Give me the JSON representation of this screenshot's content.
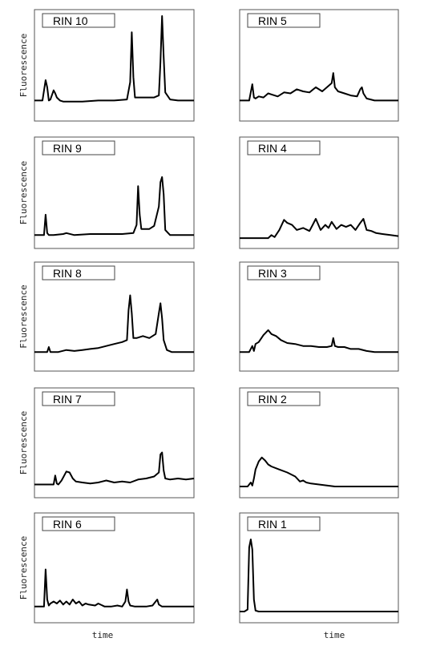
{
  "figure": {
    "ylabel": "Fluorescence",
    "xlabel": "time"
  },
  "chart_data": [
    {
      "type": "line",
      "title": "RIN 10",
      "ylabel": "Fluorescence",
      "xlabel": "",
      "column": "left",
      "row": 1,
      "xlim": [
        0,
        1
      ],
      "ylim": [
        0,
        1
      ],
      "x": [
        0.0,
        0.05,
        0.07,
        0.08,
        0.09,
        0.1,
        0.12,
        0.13,
        0.14,
        0.16,
        0.18,
        0.2,
        0.25,
        0.3,
        0.4,
        0.5,
        0.58,
        0.6,
        0.61,
        0.62,
        0.63,
        0.65,
        0.7,
        0.75,
        0.78,
        0.79,
        0.8,
        0.81,
        0.82,
        0.85,
        0.9,
        1.0
      ],
      "y": [
        0.17,
        0.17,
        0.37,
        0.3,
        0.17,
        0.18,
        0.27,
        0.24,
        0.2,
        0.17,
        0.16,
        0.16,
        0.16,
        0.16,
        0.17,
        0.17,
        0.18,
        0.35,
        0.84,
        0.4,
        0.2,
        0.2,
        0.2,
        0.2,
        0.22,
        0.55,
        1.0,
        0.6,
        0.25,
        0.18,
        0.17,
        0.17
      ]
    },
    {
      "type": "line",
      "title": "RIN 5",
      "ylabel": "",
      "xlabel": "",
      "column": "right",
      "row": 1,
      "xlim": [
        0,
        1
      ],
      "ylim": [
        0,
        1
      ],
      "x": [
        0.0,
        0.06,
        0.08,
        0.09,
        0.1,
        0.12,
        0.15,
        0.18,
        0.2,
        0.24,
        0.28,
        0.32,
        0.36,
        0.4,
        0.44,
        0.48,
        0.52,
        0.55,
        0.58,
        0.59,
        0.6,
        0.62,
        0.66,
        0.7,
        0.74,
        0.76,
        0.77,
        0.78,
        0.8,
        0.85,
        0.9,
        1.0
      ],
      "y": [
        0.17,
        0.17,
        0.33,
        0.2,
        0.19,
        0.21,
        0.2,
        0.24,
        0.23,
        0.21,
        0.25,
        0.24,
        0.28,
        0.26,
        0.25,
        0.3,
        0.26,
        0.3,
        0.34,
        0.44,
        0.3,
        0.26,
        0.24,
        0.22,
        0.21,
        0.28,
        0.3,
        0.24,
        0.19,
        0.17,
        0.17,
        0.17
      ]
    },
    {
      "type": "line",
      "title": "RIN 9",
      "ylabel": "Fluorescence",
      "xlabel": "",
      "column": "left",
      "row": 2,
      "xlim": [
        0,
        1
      ],
      "ylim": [
        0,
        1
      ],
      "x": [
        0.0,
        0.06,
        0.07,
        0.08,
        0.09,
        0.12,
        0.18,
        0.2,
        0.25,
        0.35,
        0.45,
        0.55,
        0.62,
        0.64,
        0.65,
        0.66,
        0.67,
        0.69,
        0.72,
        0.75,
        0.78,
        0.79,
        0.8,
        0.81,
        0.82,
        0.85,
        0.9,
        1.0
      ],
      "y": [
        0.1,
        0.1,
        0.3,
        0.12,
        0.1,
        0.1,
        0.11,
        0.12,
        0.1,
        0.11,
        0.11,
        0.11,
        0.12,
        0.2,
        0.58,
        0.3,
        0.16,
        0.16,
        0.16,
        0.19,
        0.38,
        0.62,
        0.67,
        0.5,
        0.15,
        0.1,
        0.1,
        0.1
      ]
    },
    {
      "type": "line",
      "title": "RIN 4",
      "ylabel": "",
      "xlabel": "",
      "column": "right",
      "row": 2,
      "xlim": [
        0,
        1
      ],
      "ylim": [
        0,
        1
      ],
      "x": [
        0.0,
        0.18,
        0.2,
        0.22,
        0.25,
        0.28,
        0.3,
        0.33,
        0.36,
        0.4,
        0.44,
        0.46,
        0.48,
        0.51,
        0.54,
        0.56,
        0.58,
        0.61,
        0.64,
        0.67,
        0.7,
        0.73,
        0.76,
        0.78,
        0.8,
        0.83,
        0.86,
        0.9,
        0.95,
        1.0
      ],
      "y": [
        0.07,
        0.07,
        0.1,
        0.08,
        0.15,
        0.25,
        0.22,
        0.2,
        0.15,
        0.17,
        0.14,
        0.2,
        0.26,
        0.15,
        0.2,
        0.17,
        0.23,
        0.16,
        0.2,
        0.18,
        0.2,
        0.15,
        0.22,
        0.26,
        0.15,
        0.14,
        0.12,
        0.11,
        0.1,
        0.09
      ]
    },
    {
      "type": "line",
      "title": "RIN 8",
      "ylabel": "Fluorescence",
      "xlabel": "",
      "column": "left",
      "row": 3,
      "xlim": [
        0,
        1
      ],
      "ylim": [
        0,
        1
      ],
      "x": [
        0.0,
        0.08,
        0.09,
        0.1,
        0.15,
        0.2,
        0.25,
        0.3,
        0.35,
        0.4,
        0.45,
        0.5,
        0.55,
        0.58,
        0.59,
        0.6,
        0.61,
        0.62,
        0.64,
        0.68,
        0.72,
        0.76,
        0.78,
        0.79,
        0.8,
        0.81,
        0.83,
        0.86,
        0.9,
        1.0
      ],
      "y": [
        0.16,
        0.16,
        0.21,
        0.16,
        0.16,
        0.18,
        0.17,
        0.18,
        0.19,
        0.2,
        0.22,
        0.24,
        0.26,
        0.28,
        0.58,
        0.73,
        0.55,
        0.3,
        0.3,
        0.32,
        0.3,
        0.34,
        0.55,
        0.65,
        0.5,
        0.28,
        0.18,
        0.16,
        0.16,
        0.16
      ]
    },
    {
      "type": "line",
      "title": "RIN 3",
      "ylabel": "",
      "xlabel": "",
      "column": "right",
      "row": 3,
      "xlim": [
        0,
        1
      ],
      "ylim": [
        0,
        1
      ],
      "x": [
        0.0,
        0.06,
        0.08,
        0.09,
        0.1,
        0.12,
        0.15,
        0.18,
        0.2,
        0.23,
        0.26,
        0.3,
        0.35,
        0.4,
        0.45,
        0.5,
        0.55,
        0.58,
        0.59,
        0.6,
        0.62,
        0.66,
        0.7,
        0.75,
        0.8,
        0.85,
        0.9,
        1.0
      ],
      "y": [
        0.16,
        0.16,
        0.22,
        0.17,
        0.24,
        0.26,
        0.33,
        0.38,
        0.34,
        0.32,
        0.28,
        0.25,
        0.24,
        0.22,
        0.22,
        0.21,
        0.21,
        0.22,
        0.3,
        0.22,
        0.21,
        0.21,
        0.19,
        0.19,
        0.17,
        0.16,
        0.16,
        0.16
      ]
    },
    {
      "type": "line",
      "title": "RIN 7",
      "ylabel": "Fluorescence",
      "xlabel": "",
      "column": "left",
      "row": 4,
      "xlim": [
        0,
        1
      ],
      "ylim": [
        0,
        1
      ],
      "x": [
        0.0,
        0.12,
        0.13,
        0.14,
        0.15,
        0.17,
        0.2,
        0.22,
        0.24,
        0.26,
        0.3,
        0.35,
        0.4,
        0.45,
        0.5,
        0.55,
        0.6,
        0.65,
        0.7,
        0.75,
        0.78,
        0.79,
        0.8,
        0.81,
        0.82,
        0.85,
        0.9,
        0.95,
        1.0
      ],
      "y": [
        0.1,
        0.1,
        0.19,
        0.11,
        0.1,
        0.14,
        0.23,
        0.22,
        0.16,
        0.13,
        0.12,
        0.11,
        0.12,
        0.14,
        0.12,
        0.13,
        0.12,
        0.15,
        0.16,
        0.18,
        0.22,
        0.4,
        0.42,
        0.24,
        0.16,
        0.15,
        0.16,
        0.15,
        0.16
      ]
    },
    {
      "type": "line",
      "title": "RIN 2",
      "ylabel": "",
      "xlabel": "",
      "column": "right",
      "row": 4,
      "xlim": [
        0,
        1
      ],
      "ylim": [
        0,
        1
      ],
      "x": [
        0.0,
        0.05,
        0.07,
        0.08,
        0.09,
        0.1,
        0.12,
        0.14,
        0.16,
        0.18,
        0.2,
        0.25,
        0.3,
        0.35,
        0.38,
        0.4,
        0.42,
        0.45,
        0.5,
        0.55,
        0.6,
        0.7,
        0.8,
        0.9,
        1.0
      ],
      "y": [
        0.08,
        0.08,
        0.12,
        0.09,
        0.16,
        0.25,
        0.33,
        0.37,
        0.34,
        0.3,
        0.28,
        0.25,
        0.22,
        0.18,
        0.13,
        0.14,
        0.12,
        0.11,
        0.1,
        0.09,
        0.08,
        0.08,
        0.08,
        0.08,
        0.08
      ]
    },
    {
      "type": "line",
      "title": "RIN 6",
      "ylabel": "Fluorescence",
      "xlabel": "time",
      "column": "left",
      "row": 5,
      "xlim": [
        0,
        1
      ],
      "ylim": [
        0,
        1
      ],
      "x": [
        0.0,
        0.06,
        0.07,
        0.08,
        0.09,
        0.1,
        0.12,
        0.14,
        0.16,
        0.18,
        0.2,
        0.22,
        0.24,
        0.26,
        0.28,
        0.3,
        0.32,
        0.34,
        0.38,
        0.4,
        0.44,
        0.48,
        0.52,
        0.55,
        0.57,
        0.58,
        0.59,
        0.6,
        0.63,
        0.66,
        0.7,
        0.74,
        0.76,
        0.77,
        0.78,
        0.8,
        0.85,
        0.9,
        1.0
      ],
      "y": [
        0.13,
        0.13,
        0.5,
        0.2,
        0.14,
        0.16,
        0.18,
        0.16,
        0.19,
        0.15,
        0.18,
        0.15,
        0.2,
        0.16,
        0.18,
        0.14,
        0.16,
        0.15,
        0.14,
        0.16,
        0.13,
        0.13,
        0.14,
        0.13,
        0.18,
        0.3,
        0.18,
        0.14,
        0.13,
        0.13,
        0.13,
        0.14,
        0.18,
        0.2,
        0.15,
        0.13,
        0.13,
        0.13,
        0.13
      ]
    },
    {
      "type": "line",
      "title": "RIN 1",
      "ylabel": "",
      "xlabel": "time",
      "column": "right",
      "row": 5,
      "xlim": [
        0,
        1
      ],
      "ylim": [
        0,
        1
      ],
      "x": [
        0.0,
        0.03,
        0.05,
        0.06,
        0.07,
        0.08,
        0.09,
        0.1,
        0.12,
        0.15,
        0.2,
        0.3,
        0.4,
        0.5,
        0.6,
        0.7,
        0.8,
        0.9,
        1.0
      ],
      "y": [
        0.08,
        0.08,
        0.1,
        0.72,
        0.8,
        0.7,
        0.2,
        0.09,
        0.08,
        0.08,
        0.08,
        0.08,
        0.08,
        0.08,
        0.08,
        0.08,
        0.08,
        0.08,
        0.08
      ]
    }
  ]
}
